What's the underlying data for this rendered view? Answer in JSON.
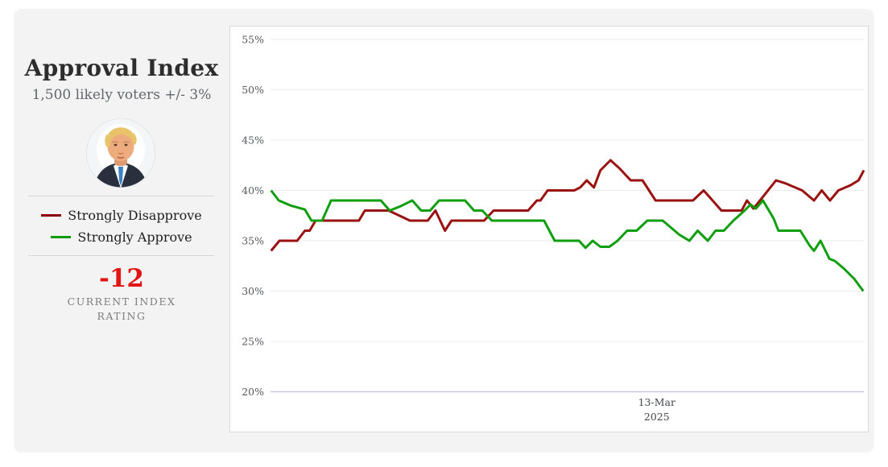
{
  "panel": {
    "title": "Approval Index",
    "subtitle": "1,500 likely voters +/- 3%",
    "avatar_alt": "Donald Trump",
    "legend": [
      {
        "label": "Strongly Disapprove",
        "color": "#8b0000"
      },
      {
        "label": "Strongly Approve",
        "color": "#0a9a0a"
      }
    ],
    "rating": {
      "value": "-12",
      "color": "#e41414",
      "caption_line1": "CURRENT INDEX",
      "caption_line2": "RATING"
    }
  },
  "chart_data": {
    "type": "line",
    "title": "Approval Index trend",
    "xlabel": "",
    "ylabel": "",
    "ylim": [
      20,
      55
    ],
    "ytick_values": [
      55,
      50,
      45,
      40,
      35,
      30,
      25,
      20
    ],
    "ytick_suffix": "%",
    "xtick": {
      "label_line1": "13-Mar",
      "label_line2": "2025",
      "x_pct": 65.1
    },
    "grid": true,
    "legend_position": "left-panel",
    "axis_colors": {
      "gridline": "#ebebeb",
      "baseline": "#c4cbe0"
    },
    "series": [
      {
        "name": "Strongly Disapprove",
        "color": "#9a1111",
        "points": [
          [
            0.1,
            34
          ],
          [
            1.5,
            35
          ],
          [
            4.5,
            35
          ],
          [
            5.8,
            36
          ],
          [
            6.6,
            36
          ],
          [
            7.6,
            37
          ],
          [
            14.9,
            37
          ],
          [
            15.9,
            38
          ],
          [
            19.9,
            38
          ],
          [
            23.5,
            37
          ],
          [
            26.5,
            37
          ],
          [
            27.8,
            38
          ],
          [
            29.4,
            36
          ],
          [
            30.5,
            37
          ],
          [
            36.0,
            37
          ],
          [
            37.6,
            38
          ],
          [
            43.4,
            38
          ],
          [
            44.9,
            39
          ],
          [
            45.5,
            39
          ],
          [
            46.7,
            40
          ],
          [
            51.2,
            40
          ],
          [
            52.2,
            40.3
          ],
          [
            53.3,
            41
          ],
          [
            54.5,
            40.3
          ],
          [
            55.6,
            42
          ],
          [
            57.3,
            43
          ],
          [
            58.8,
            42.2
          ],
          [
            60.7,
            41
          ],
          [
            62.7,
            41
          ],
          [
            64.9,
            39
          ],
          [
            71.2,
            39
          ],
          [
            73.0,
            40
          ],
          [
            74.5,
            39
          ],
          [
            76.0,
            38
          ],
          [
            79.4,
            38
          ],
          [
            80.3,
            39
          ],
          [
            81.4,
            38.2
          ],
          [
            82.5,
            39
          ],
          [
            85.2,
            41
          ],
          [
            86.8,
            40.7
          ],
          [
            89.6,
            40
          ],
          [
            91.6,
            39
          ],
          [
            92.9,
            40
          ],
          [
            94.3,
            39
          ],
          [
            95.7,
            40
          ],
          [
            97.7,
            40.5
          ],
          [
            99.1,
            41
          ],
          [
            100,
            42
          ]
        ]
      },
      {
        "name": "Strongly Approve",
        "color": "#0e9e0e",
        "points": [
          [
            0.1,
            40
          ],
          [
            1.4,
            39
          ],
          [
            3.4,
            38.5
          ],
          [
            5.8,
            38.1
          ],
          [
            6.9,
            37
          ],
          [
            8.7,
            37
          ],
          [
            10.2,
            39
          ],
          [
            18.6,
            39
          ],
          [
            20.1,
            38
          ],
          [
            21.8,
            38.4
          ],
          [
            23.9,
            39
          ],
          [
            25.4,
            38
          ],
          [
            26.9,
            38
          ],
          [
            28.4,
            39
          ],
          [
            32.8,
            39
          ],
          [
            34.3,
            38
          ],
          [
            35.7,
            38
          ],
          [
            37.3,
            37
          ],
          [
            46.1,
            37
          ],
          [
            47.9,
            35
          ],
          [
            52.0,
            35
          ],
          [
            53.1,
            34.3
          ],
          [
            54.3,
            35
          ],
          [
            55.6,
            34.4
          ],
          [
            57.1,
            34.4
          ],
          [
            58.5,
            35
          ],
          [
            60.1,
            36
          ],
          [
            61.7,
            36
          ],
          [
            63.5,
            37
          ],
          [
            66.1,
            37
          ],
          [
            68.9,
            35.6
          ],
          [
            70.6,
            35
          ],
          [
            72.0,
            36
          ],
          [
            73.7,
            35
          ],
          [
            75.0,
            36
          ],
          [
            76.4,
            36
          ],
          [
            78.0,
            37
          ],
          [
            79.9,
            38
          ],
          [
            80.9,
            38.6
          ],
          [
            81.8,
            38.2
          ],
          [
            83.0,
            39
          ],
          [
            84.8,
            37.2
          ],
          [
            85.6,
            36
          ],
          [
            89.3,
            36
          ],
          [
            90.9,
            34.5
          ],
          [
            91.6,
            34
          ],
          [
            92.7,
            35
          ],
          [
            94.2,
            33.2
          ],
          [
            95.1,
            33
          ],
          [
            96.7,
            32.2
          ],
          [
            98.4,
            31.2
          ],
          [
            99.9,
            30
          ]
        ]
      }
    ]
  }
}
